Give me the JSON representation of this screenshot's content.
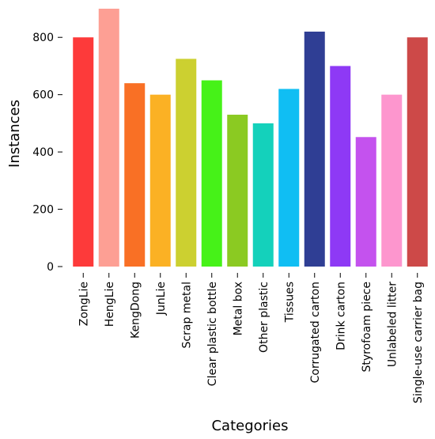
{
  "chart_data": {
    "type": "bar",
    "title": "",
    "xlabel": "Categories",
    "ylabel": "Instances",
    "ylim": [
      0,
      900
    ],
    "yticks": [
      0,
      200,
      400,
      600,
      800
    ],
    "grid": false,
    "categories": [
      "ZongLie",
      "HengLie",
      "KengDong",
      "JunLie",
      "Scrap metal",
      "Clear plastic bottle",
      "Metal box",
      "Other plastic",
      "Tissues",
      "Corrugated carton",
      "Drink carton",
      "Styrofoam piece",
      "Unlabeled litter",
      "Single-use carrier bag"
    ],
    "values": [
      800,
      900,
      640,
      600,
      725,
      650,
      530,
      500,
      620,
      820,
      700,
      452,
      600,
      800
    ],
    "colors": [
      "#fd3a3a",
      "#fd9f94",
      "#f97025",
      "#fbb124",
      "#ccd030",
      "#46f218",
      "#8bca22",
      "#14d1bb",
      "#10bef3",
      "#2f3e94",
      "#8e39f5",
      "#c452ee",
      "#fd96ce",
      "#cd4948"
    ]
  }
}
